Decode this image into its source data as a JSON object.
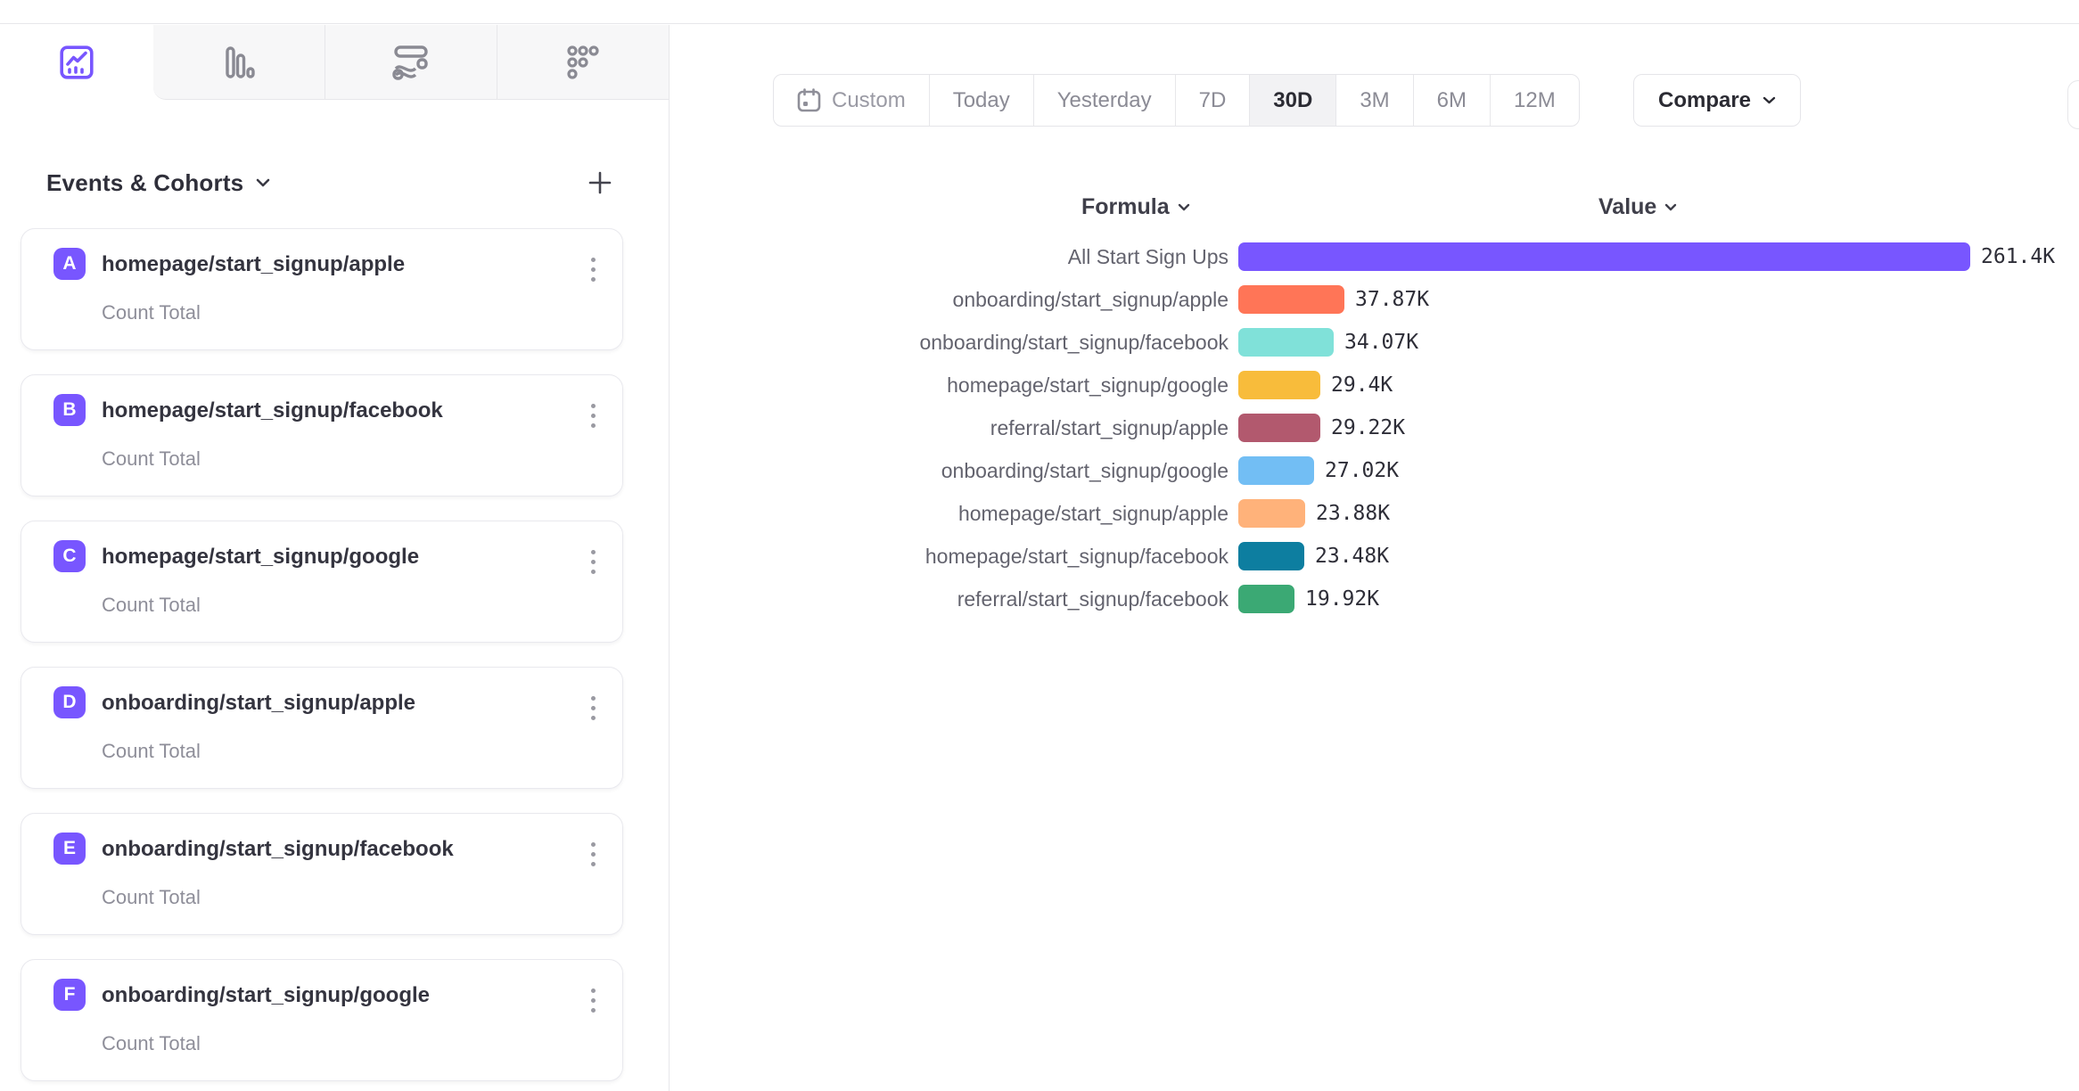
{
  "view_tabs": {
    "items": [
      {
        "name": "insights-line-chart",
        "active": true
      },
      {
        "name": "bar-chart",
        "active": false
      },
      {
        "name": "flow",
        "active": false
      },
      {
        "name": "metrics-grid",
        "active": false
      }
    ]
  },
  "sidebar": {
    "title": "Events & Cohorts",
    "events": [
      {
        "letter": "A",
        "name": "homepage/start_signup/apple",
        "metric": "Count Total"
      },
      {
        "letter": "B",
        "name": "homepage/start_signup/facebook",
        "metric": "Count Total"
      },
      {
        "letter": "C",
        "name": "homepage/start_signup/google",
        "metric": "Count Total"
      },
      {
        "letter": "D",
        "name": "onboarding/start_signup/apple",
        "metric": "Count Total"
      },
      {
        "letter": "E",
        "name": "onboarding/start_signup/facebook",
        "metric": "Count Total"
      },
      {
        "letter": "F",
        "name": "onboarding/start_signup/google",
        "metric": "Count Total"
      }
    ],
    "badge_color": "#7856FF"
  },
  "toolbar": {
    "ranges": [
      "Custom",
      "Today",
      "Yesterday",
      "7D",
      "30D",
      "3M",
      "6M",
      "12M"
    ],
    "active_range": "30D",
    "compare_label": "Compare"
  },
  "chart_headers": {
    "formula": "Formula",
    "value": "Value"
  },
  "chart_data": {
    "type": "bar",
    "orientation": "horizontal",
    "categories": [
      "All Start Sign Ups",
      "onboarding/start_signup/apple",
      "onboarding/start_signup/facebook",
      "homepage/start_signup/google",
      "referral/start_signup/apple",
      "onboarding/start_signup/google",
      "homepage/start_signup/apple",
      "homepage/start_signup/facebook",
      "referral/start_signup/facebook"
    ],
    "values": [
      261400,
      37870,
      34070,
      29400,
      29220,
      27020,
      23880,
      23480,
      19920
    ],
    "value_labels": [
      "261.4K",
      "37.87K",
      "34.07K",
      "29.4K",
      "29.22K",
      "27.02K",
      "23.88K",
      "23.48K",
      "19.92K"
    ],
    "colors": [
      "#7856FF",
      "#FF7557",
      "#80E1D9",
      "#F8BC3B",
      "#B2596E",
      "#72BEF4",
      "#FFB27A",
      "#0D7EA0",
      "#3BA974"
    ],
    "xlim": [
      0,
      261400
    ],
    "title": "",
    "xlabel": "",
    "ylabel": "",
    "grid": false,
    "legend": false
  }
}
